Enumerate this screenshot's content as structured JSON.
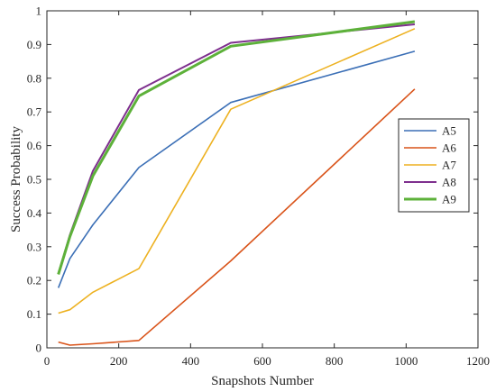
{
  "chart_data": {
    "type": "line",
    "title": "",
    "xlabel": "Snapshots Number",
    "ylabel": "Success Probability",
    "xlim": [
      0,
      1200
    ],
    "ylim": [
      0,
      1
    ],
    "xticks": [
      0,
      200,
      400,
      600,
      800,
      1000,
      1200
    ],
    "yticks": [
      0,
      0.1,
      0.2,
      0.3,
      0.4,
      0.5,
      0.6,
      0.7,
      0.8,
      0.9,
      1
    ],
    "ytick_labels": [
      "0",
      "0.1",
      "0.2",
      "0.3",
      "0.4",
      "0.5",
      "0.6",
      "0.7",
      "0.8",
      "0.9",
      "1"
    ],
    "grid": false,
    "legend_position": "right",
    "x": [
      32,
      64,
      128,
      256,
      512,
      1024
    ],
    "series": [
      {
        "name": "A5",
        "color": "#3B6FB6",
        "width": 1.6,
        "values": [
          0.178,
          0.265,
          0.365,
          0.535,
          0.728,
          0.88
        ]
      },
      {
        "name": "A6",
        "color": "#D95319",
        "width": 1.6,
        "values": [
          0.017,
          0.008,
          0.012,
          0.022,
          0.258,
          0.768
        ]
      },
      {
        "name": "A7",
        "color": "#EDB120",
        "width": 1.6,
        "values": [
          0.103,
          0.113,
          0.165,
          0.235,
          0.708,
          0.947
        ]
      },
      {
        "name": "A8",
        "color": "#7E2F8E",
        "width": 2.0,
        "values": [
          0.22,
          0.335,
          0.525,
          0.765,
          0.905,
          0.96
        ]
      },
      {
        "name": "A9",
        "color": "#5DB13A",
        "width": 3.0,
        "values": [
          0.218,
          0.33,
          0.51,
          0.747,
          0.895,
          0.968
        ]
      }
    ]
  }
}
